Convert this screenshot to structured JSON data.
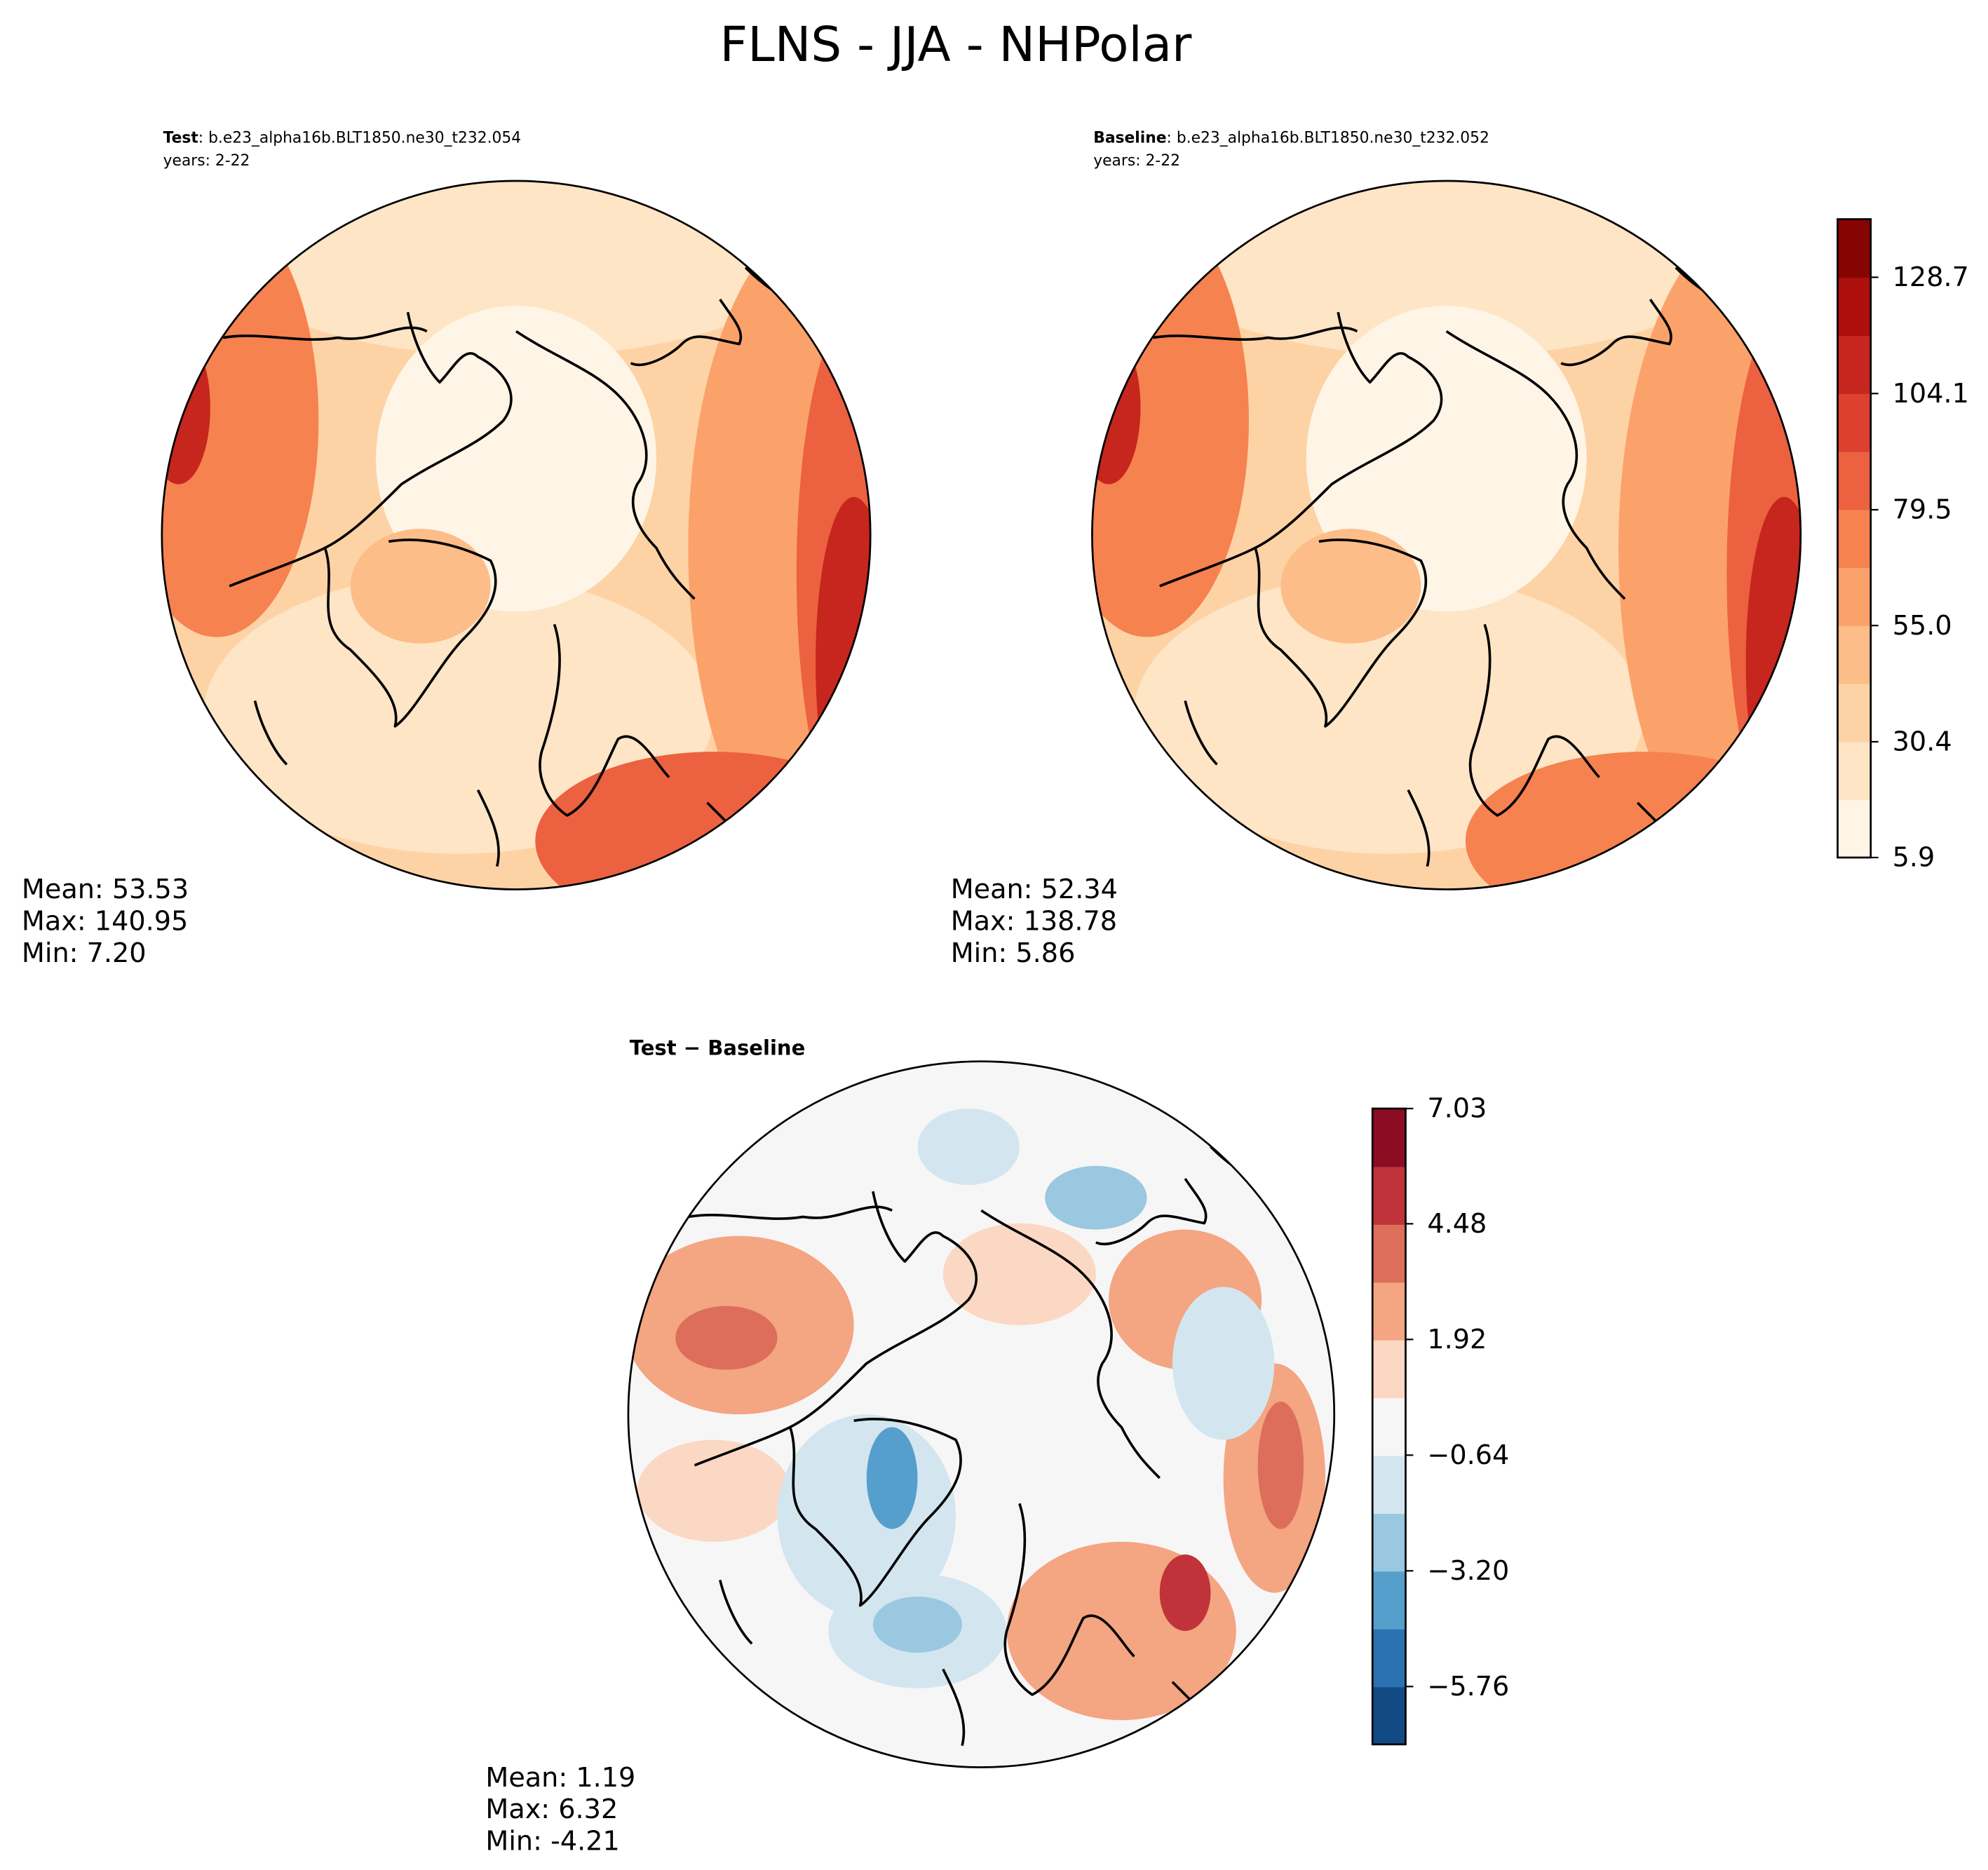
{
  "title": "FLNS - JJA - NHPolar",
  "panels": [
    {
      "label": "Test",
      "case": ": b.e23_alpha16b.BLT1850.ne30_t232.054",
      "years": "years: 2-22",
      "stats": [
        "Mean: 53.53",
        "Max: 140.95",
        "Min:  7.20"
      ]
    },
    {
      "label": "Baseline",
      "case": ": b.e23_alpha16b.BLT1850.ne30_t232.052",
      "years": "years: 2-22",
      "stats": [
        "Mean: 52.34",
        "Max: 138.78",
        "Min:  5.86"
      ]
    },
    {
      "label": "Test − Baseline",
      "stats": [
        "Mean:  1.19",
        "Max:  6.32",
        "Min: -4.21"
      ]
    }
  ],
  "colorbars": [
    {
      "lim": [
        5.9,
        141.0
      ],
      "ticks": [
        5.9,
        30.4,
        {
          "value": 55,
          "label": "55.0"
        },
        79.5,
        104.1,
        128.7
      ],
      "colors": [
        "#fff5e7",
        "#fee5c6",
        "#fdd3a6",
        "#fcbd88",
        "#fba26b",
        "#f6824f",
        "#ec6140",
        "#dc402f",
        "#c6261d",
        "#ad0f0c",
        "#860404"
      ]
    },
    {
      "lim": [
        -7.04,
        7.03
      ],
      "ticks": [
        {
          "value": -5.76,
          "label": "−5.76"
        },
        {
          "value": -3.2,
          "label": "−3.20"
        },
        {
          "value": -0.64,
          "label": "−0.64"
        },
        1.92,
        4.48,
        7.03
      ],
      "colors": [
        "#124a84",
        "#2b72b3",
        "#569fcc",
        "#9ac8e0",
        "#d3e6f0",
        "#f7f6f6",
        "#fbd8c4",
        "#f4a582",
        "#dd6e5c",
        "#c0333a",
        "#8a0d24"
      ]
    }
  ]
}
